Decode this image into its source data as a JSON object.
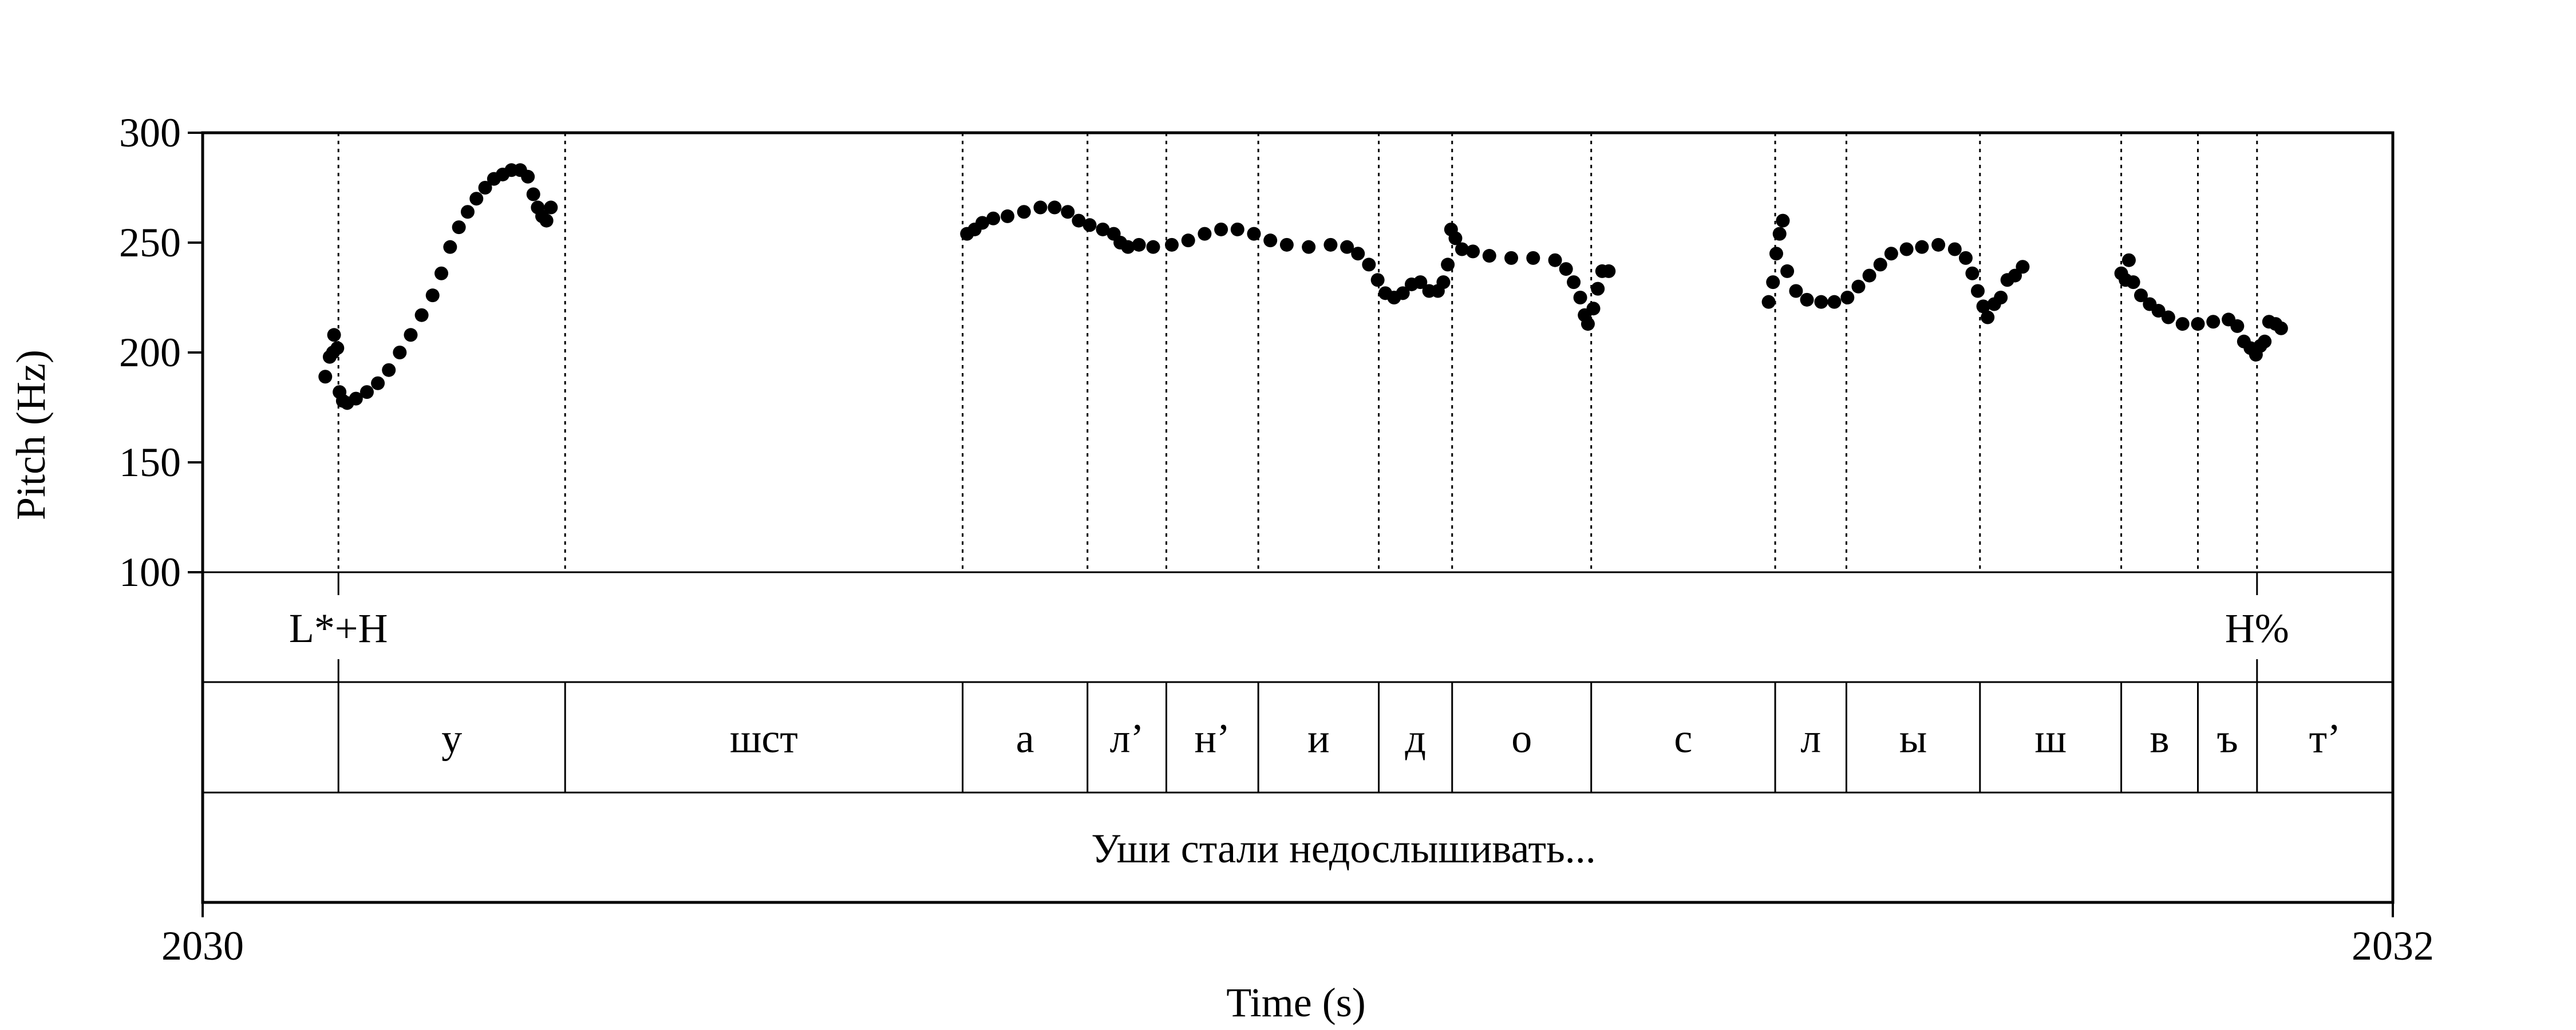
{
  "chart_data": {
    "type": "scatter",
    "xlabel": "Time (s)",
    "ylabel": "Pitch (Hz)",
    "xlim": [
      2030,
      2032
    ],
    "ylim": [
      100,
      300
    ],
    "x_ticks": [
      {
        "value": 2030,
        "label": "2030"
      },
      {
        "value": 2032,
        "label": "2032"
      }
    ],
    "y_ticks": [
      {
        "value": 100,
        "label": "100"
      },
      {
        "value": 150,
        "label": "150"
      },
      {
        "value": 200,
        "label": "200"
      },
      {
        "value": 250,
        "label": "250"
      },
      {
        "value": 300,
        "label": "300"
      }
    ],
    "segments": [
      {
        "start": 2030.0,
        "end": 2030.124,
        "label": ""
      },
      {
        "start": 2030.124,
        "end": 2030.331,
        "label": "у"
      },
      {
        "start": 2030.331,
        "end": 2030.694,
        "label": "шст"
      },
      {
        "start": 2030.694,
        "end": 2030.808,
        "label": "а"
      },
      {
        "start": 2030.808,
        "end": 2030.88,
        "label": "л’"
      },
      {
        "start": 2030.88,
        "end": 2030.964,
        "label": "н’"
      },
      {
        "start": 2030.964,
        "end": 2031.074,
        "label": "и"
      },
      {
        "start": 2031.074,
        "end": 2031.141,
        "label": "д"
      },
      {
        "start": 2031.141,
        "end": 2031.268,
        "label": "о"
      },
      {
        "start": 2031.268,
        "end": 2031.436,
        "label": "с"
      },
      {
        "start": 2031.436,
        "end": 2031.501,
        "label": "л"
      },
      {
        "start": 2031.501,
        "end": 2031.623,
        "label": "ы"
      },
      {
        "start": 2031.623,
        "end": 2031.752,
        "label": "ш"
      },
      {
        "start": 2031.752,
        "end": 2031.822,
        "label": "в"
      },
      {
        "start": 2031.822,
        "end": 2031.876,
        "label": "ъ"
      },
      {
        "start": 2031.876,
        "end": 2032.0,
        "label": "т’"
      }
    ],
    "tones": [
      {
        "time": 2030.124,
        "label": "L*+H"
      },
      {
        "time": 2031.876,
        "label": "H%"
      }
    ],
    "phrases": [
      {
        "start": 2030.0,
        "end": 2032.0,
        "label": "Уши стали недослышивать..."
      }
    ],
    "pitch_points": [
      [
        2030.112,
        189
      ],
      [
        2030.116,
        198
      ],
      [
        2030.119,
        200
      ],
      [
        2030.12,
        208
      ],
      [
        2030.123,
        202
      ],
      [
        2030.125,
        182
      ],
      [
        2030.128,
        178
      ],
      [
        2030.132,
        177
      ],
      [
        2030.14,
        179
      ],
      [
        2030.15,
        182
      ],
      [
        2030.16,
        186
      ],
      [
        2030.17,
        192
      ],
      [
        2030.18,
        200
      ],
      [
        2030.19,
        208
      ],
      [
        2030.2,
        217
      ],
      [
        2030.21,
        226
      ],
      [
        2030.218,
        236
      ],
      [
        2030.226,
        248
      ],
      [
        2030.234,
        257
      ],
      [
        2030.242,
        264
      ],
      [
        2030.25,
        270
      ],
      [
        2030.258,
        275
      ],
      [
        2030.266,
        279
      ],
      [
        2030.274,
        281
      ],
      [
        2030.282,
        283
      ],
      [
        2030.29,
        283
      ],
      [
        2030.297,
        280
      ],
      [
        2030.302,
        272
      ],
      [
        2030.306,
        266
      ],
      [
        2030.31,
        262
      ],
      [
        2030.314,
        260
      ],
      [
        2030.318,
        266
      ],
      [
        2030.698,
        254
      ],
      [
        2030.705,
        256
      ],
      [
        2030.712,
        259
      ],
      [
        2030.722,
        261
      ],
      [
        2030.735,
        262
      ],
      [
        2030.75,
        264
      ],
      [
        2030.765,
        266
      ],
      [
        2030.778,
        266
      ],
      [
        2030.79,
        264
      ],
      [
        2030.8,
        260
      ],
      [
        2030.81,
        258
      ],
      [
        2030.822,
        256
      ],
      [
        2030.832,
        254
      ],
      [
        2030.838,
        250
      ],
      [
        2030.845,
        248
      ],
      [
        2030.855,
        249
      ],
      [
        2030.868,
        248
      ],
      [
        2030.885,
        249
      ],
      [
        2030.9,
        251
      ],
      [
        2030.915,
        254
      ],
      [
        2030.93,
        256
      ],
      [
        2030.945,
        256
      ],
      [
        2030.96,
        254
      ],
      [
        2030.975,
        251
      ],
      [
        2030.99,
        249
      ],
      [
        2031.01,
        248
      ],
      [
        2031.03,
        249
      ],
      [
        2031.045,
        248
      ],
      [
        2031.055,
        245
      ],
      [
        2031.065,
        240
      ],
      [
        2031.073,
        233
      ],
      [
        2031.08,
        227
      ],
      [
        2031.088,
        225
      ],
      [
        2031.096,
        227
      ],
      [
        2031.104,
        231
      ],
      [
        2031.112,
        232
      ],
      [
        2031.12,
        228
      ],
      [
        2031.128,
        228
      ],
      [
        2031.133,
        232
      ],
      [
        2031.137,
        240
      ],
      [
        2031.14,
        256
      ],
      [
        2031.144,
        252
      ],
      [
        2031.15,
        247
      ],
      [
        2031.16,
        246
      ],
      [
        2031.175,
        244
      ],
      [
        2031.195,
        243
      ],
      [
        2031.215,
        243
      ],
      [
        2031.235,
        242
      ],
      [
        2031.245,
        238
      ],
      [
        2031.252,
        232
      ],
      [
        2031.258,
        225
      ],
      [
        2031.262,
        217
      ],
      [
        2031.265,
        213
      ],
      [
        2031.27,
        220
      ],
      [
        2031.274,
        229
      ],
      [
        2031.278,
        237
      ],
      [
        2031.284,
        237
      ],
      [
        2031.43,
        223
      ],
      [
        2031.434,
        232
      ],
      [
        2031.437,
        245
      ],
      [
        2031.44,
        254
      ],
      [
        2031.443,
        260
      ],
      [
        2031.447,
        237
      ],
      [
        2031.455,
        228
      ],
      [
        2031.465,
        224
      ],
      [
        2031.478,
        223
      ],
      [
        2031.49,
        223
      ],
      [
        2031.502,
        225
      ],
      [
        2031.512,
        230
      ],
      [
        2031.522,
        235
      ],
      [
        2031.532,
        240
      ],
      [
        2031.542,
        245
      ],
      [
        2031.556,
        247
      ],
      [
        2031.57,
        248
      ],
      [
        2031.585,
        249
      ],
      [
        2031.6,
        247
      ],
      [
        2031.61,
        243
      ],
      [
        2031.616,
        236
      ],
      [
        2031.621,
        228
      ],
      [
        2031.626,
        221
      ],
      [
        2031.63,
        216
      ],
      [
        2031.636,
        222
      ],
      [
        2031.642,
        225
      ],
      [
        2031.648,
        233
      ],
      [
        2031.655,
        235
      ],
      [
        2031.662,
        239
      ],
      [
        2031.752,
        236
      ],
      [
        2031.756,
        233
      ],
      [
        2031.759,
        242
      ],
      [
        2031.763,
        232
      ],
      [
        2031.77,
        226
      ],
      [
        2031.778,
        222
      ],
      [
        2031.786,
        219
      ],
      [
        2031.795,
        216
      ],
      [
        2031.808,
        213
      ],
      [
        2031.822,
        213
      ],
      [
        2031.836,
        214
      ],
      [
        2031.85,
        215
      ],
      [
        2031.858,
        212
      ],
      [
        2031.864,
        205
      ],
      [
        2031.87,
        202
      ],
      [
        2031.875,
        199
      ],
      [
        2031.879,
        203
      ],
      [
        2031.883,
        205
      ],
      [
        2031.887,
        214
      ],
      [
        2031.893,
        213
      ],
      [
        2031.898,
        211
      ]
    ]
  }
}
